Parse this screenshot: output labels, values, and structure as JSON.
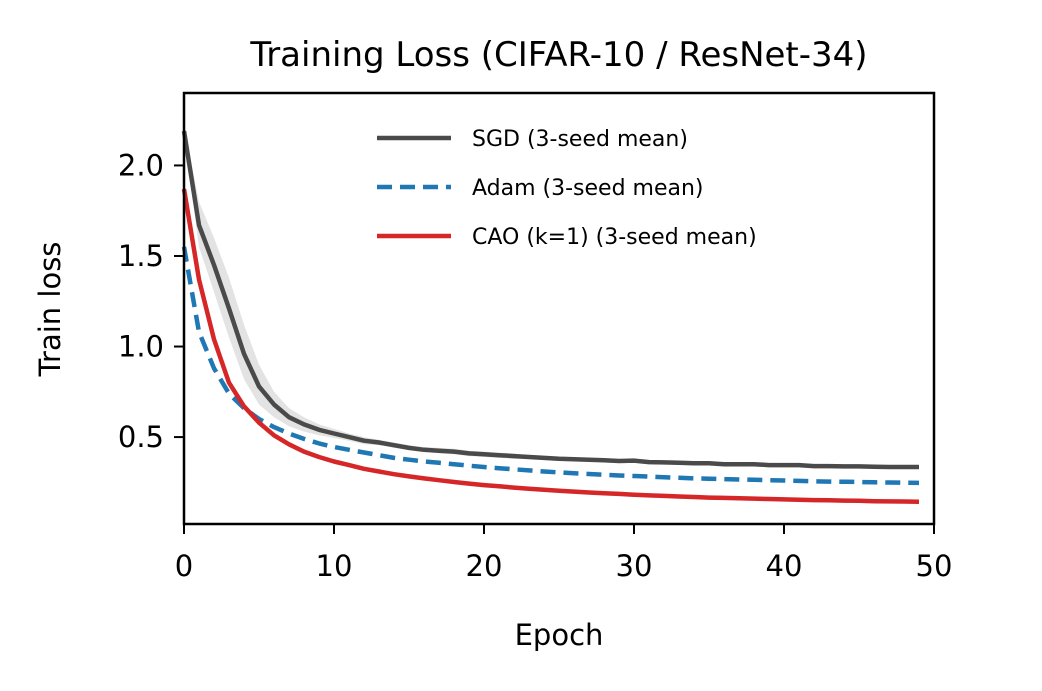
{
  "chart_data": {
    "type": "line",
    "title": "Training Loss (CIFAR-10 / ResNet-34)",
    "xlabel": "Epoch",
    "ylabel": "Train loss",
    "xlim": [
      0,
      50
    ],
    "ylim": [
      0.02,
      2.4
    ],
    "xticks": [
      0,
      10,
      20,
      30,
      40,
      50
    ],
    "yticks": [
      0.5,
      1.0,
      1.5,
      2.0
    ],
    "xtick_labels": [
      "0",
      "10",
      "20",
      "30",
      "40",
      "50"
    ],
    "ytick_labels": [
      "0.5",
      "1.0",
      "1.5",
      "2.0"
    ],
    "legend_position": "top-right",
    "x": [
      0,
      1,
      2,
      3,
      4,
      5,
      6,
      7,
      8,
      9,
      10,
      11,
      12,
      13,
      14,
      15,
      16,
      17,
      18,
      19,
      20,
      21,
      22,
      23,
      24,
      25,
      26,
      27,
      28,
      29,
      30,
      31,
      32,
      33,
      34,
      35,
      36,
      37,
      38,
      39,
      40,
      41,
      42,
      43,
      44,
      45,
      46,
      47,
      48,
      49
    ],
    "series": [
      {
        "name": "SGD (3-seed mean)",
        "color": "#4a4a4a",
        "style": "solid",
        "band_color": "#e0e0e0",
        "values": [
          2.19,
          1.67,
          1.45,
          1.21,
          0.96,
          0.78,
          0.68,
          0.61,
          0.57,
          0.54,
          0.52,
          0.5,
          0.48,
          0.47,
          0.455,
          0.44,
          0.43,
          0.425,
          0.42,
          0.41,
          0.405,
          0.4,
          0.395,
          0.39,
          0.385,
          0.38,
          0.378,
          0.375,
          0.372,
          0.368,
          0.37,
          0.362,
          0.36,
          0.358,
          0.355,
          0.355,
          0.35,
          0.35,
          0.35,
          0.345,
          0.345,
          0.345,
          0.34,
          0.34,
          0.338,
          0.338,
          0.336,
          0.335,
          0.335,
          0.335
        ],
        "band_upper": [
          2.22,
          1.8,
          1.6,
          1.38,
          1.12,
          0.9,
          0.75,
          0.66,
          0.61,
          0.57,
          0.545,
          0.52,
          0.5,
          0.485,
          0.47,
          0.455,
          0.445,
          0.44,
          0.435,
          0.425,
          0.42,
          0.415,
          0.41,
          0.4,
          0.395,
          0.39,
          0.388,
          0.385,
          0.382,
          0.378,
          0.378,
          0.372,
          0.37,
          0.366,
          0.364,
          0.363,
          0.36,
          0.358,
          0.358,
          0.354,
          0.354,
          0.352,
          0.35,
          0.348,
          0.346,
          0.346,
          0.344,
          0.343,
          0.343,
          0.343
        ],
        "band_lower": [
          2.16,
          1.55,
          1.3,
          1.05,
          0.82,
          0.68,
          0.61,
          0.56,
          0.53,
          0.51,
          0.495,
          0.48,
          0.46,
          0.455,
          0.44,
          0.43,
          0.42,
          0.41,
          0.405,
          0.395,
          0.39,
          0.385,
          0.38,
          0.38,
          0.375,
          0.37,
          0.368,
          0.365,
          0.362,
          0.358,
          0.36,
          0.352,
          0.35,
          0.35,
          0.346,
          0.347,
          0.34,
          0.342,
          0.342,
          0.336,
          0.336,
          0.338,
          0.33,
          0.332,
          0.33,
          0.33,
          0.328,
          0.327,
          0.327,
          0.327
        ]
      },
      {
        "name": "Adam (3-seed mean)",
        "color": "#1f77b4",
        "style": "dashed",
        "values": [
          1.55,
          1.08,
          0.88,
          0.74,
          0.66,
          0.6,
          0.555,
          0.52,
          0.49,
          0.465,
          0.445,
          0.43,
          0.415,
          0.4,
          0.385,
          0.375,
          0.365,
          0.358,
          0.35,
          0.342,
          0.335,
          0.328,
          0.322,
          0.316,
          0.31,
          0.305,
          0.3,
          0.296,
          0.292,
          0.288,
          0.285,
          0.282,
          0.278,
          0.275,
          0.272,
          0.27,
          0.268,
          0.266,
          0.264,
          0.262,
          0.26,
          0.258,
          0.256,
          0.254,
          0.253,
          0.252,
          0.25,
          0.249,
          0.248,
          0.247
        ]
      },
      {
        "name": "CAO (k=1) (3-seed mean)",
        "color": "#d62728",
        "style": "solid",
        "values": [
          1.87,
          1.37,
          1.04,
          0.8,
          0.67,
          0.58,
          0.51,
          0.46,
          0.42,
          0.39,
          0.365,
          0.345,
          0.325,
          0.31,
          0.295,
          0.283,
          0.272,
          0.262,
          0.252,
          0.243,
          0.235,
          0.228,
          0.221,
          0.215,
          0.209,
          0.204,
          0.199,
          0.194,
          0.19,
          0.186,
          0.182,
          0.178,
          0.175,
          0.172,
          0.169,
          0.166,
          0.164,
          0.162,
          0.16,
          0.158,
          0.156,
          0.154,
          0.152,
          0.151,
          0.149,
          0.148,
          0.146,
          0.145,
          0.144,
          0.143
        ]
      }
    ]
  }
}
